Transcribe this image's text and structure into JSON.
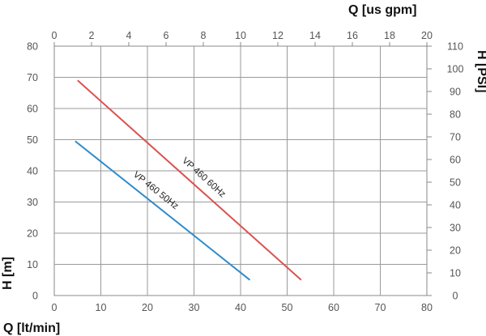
{
  "chart_data": {
    "type": "line",
    "xlabel": "Q [lt/min]",
    "x2label": "Q [us gpm]",
    "ylabel": "H [m]",
    "y2label": "H [PSI]",
    "xlim": [
      0,
      80
    ],
    "ylim": [
      0,
      80
    ],
    "x2lim": [
      0,
      20
    ],
    "y2lim": [
      0,
      110
    ],
    "xticks": [
      "0",
      "10",
      "20",
      "30",
      "40",
      "50",
      "60",
      "70",
      "80"
    ],
    "yticks": [
      "0",
      "10",
      "20",
      "30",
      "40",
      "50",
      "60",
      "70",
      "80"
    ],
    "x2ticks": [
      "0",
      "2",
      "4",
      "6",
      "8",
      "10",
      "12",
      "14",
      "16",
      "18",
      "20"
    ],
    "y2ticks": [
      "0",
      "10",
      "20",
      "30",
      "40",
      "50",
      "60",
      "70",
      "80",
      "90",
      "100",
      "110"
    ],
    "grid": true,
    "series": [
      {
        "name": "VP 460 60Hz",
        "color": "#d9534f",
        "x": [
          5,
          53
        ],
        "y": [
          69,
          5
        ]
      },
      {
        "name": "VP 460 50Hz",
        "color": "#2f8bc9",
        "x": [
          4.5,
          42
        ],
        "y": [
          49.5,
          5
        ]
      }
    ]
  }
}
